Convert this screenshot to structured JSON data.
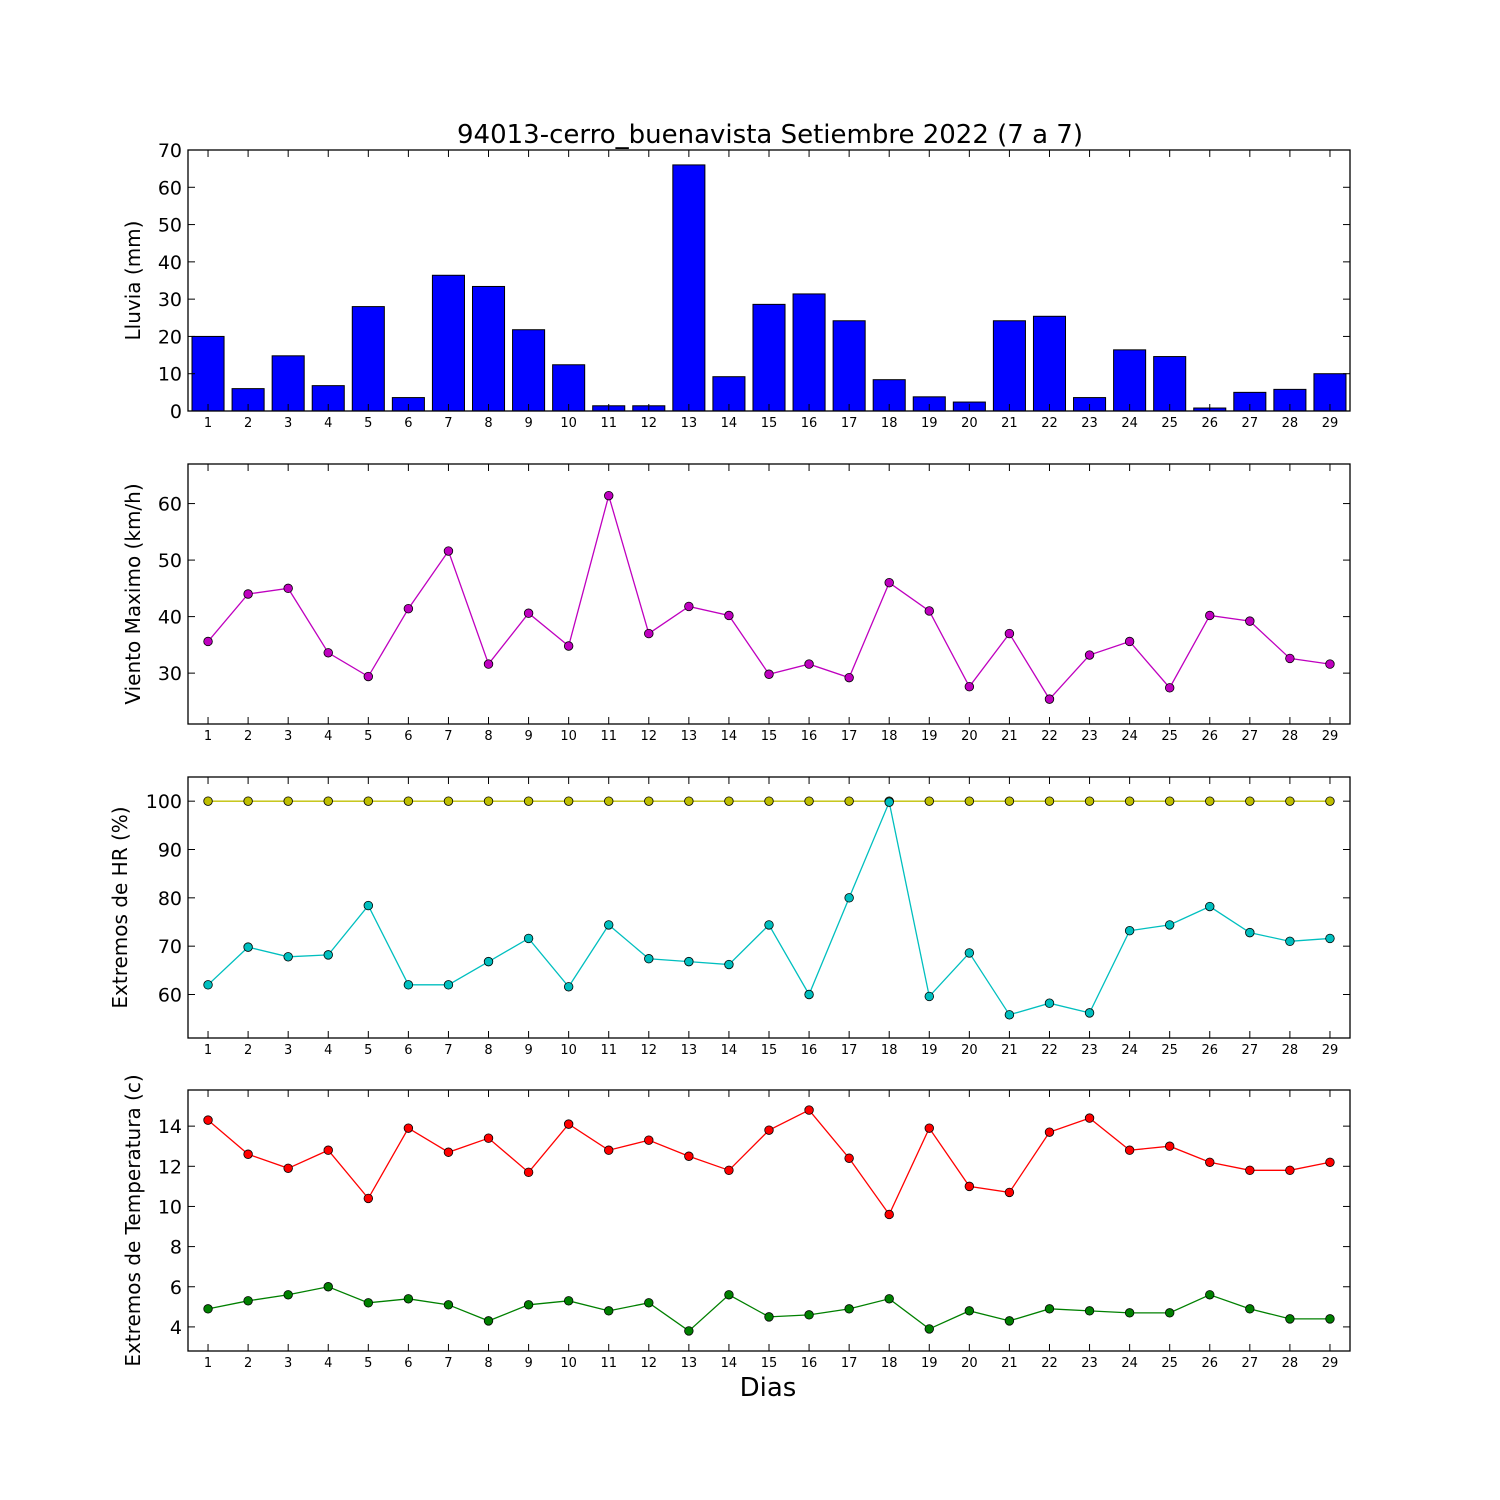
{
  "title": "94013-cerro_buenavista Setiembre 2022  (7 a 7)",
  "xlabel": "Dias",
  "chart_data": [
    {
      "type": "bar",
      "ylabel": "Lluvia (mm)",
      "ylim": [
        0,
        70
      ],
      "yticks": [
        0,
        10,
        20,
        30,
        40,
        50,
        60,
        70
      ],
      "categories": [
        1,
        2,
        3,
        4,
        5,
        6,
        7,
        8,
        9,
        10,
        11,
        12,
        13,
        14,
        15,
        16,
        17,
        18,
        19,
        20,
        21,
        22,
        23,
        24,
        25,
        26,
        27,
        28,
        29
      ],
      "series": [
        {
          "color": "#0000ff",
          "values": [
            20.0,
            6.0,
            14.8,
            6.8,
            28.0,
            3.6,
            36.4,
            33.4,
            21.8,
            12.4,
            1.4,
            1.4,
            66.0,
            9.2,
            28.6,
            31.4,
            24.2,
            8.4,
            3.8,
            2.4,
            24.2,
            25.4,
            3.6,
            16.4,
            14.6,
            0.8,
            5.0,
            5.8,
            10.0
          ]
        }
      ]
    },
    {
      "type": "line",
      "ylabel": "Viento Maximo (km/h)",
      "ylim": [
        21,
        67
      ],
      "yticks": [
        30,
        40,
        50,
        60
      ],
      "x": [
        1,
        2,
        3,
        4,
        5,
        6,
        7,
        8,
        9,
        10,
        11,
        12,
        13,
        14,
        15,
        16,
        17,
        18,
        19,
        20,
        21,
        22,
        23,
        24,
        25,
        26,
        27,
        28,
        29
      ],
      "series": [
        {
          "color": "#bf00bf",
          "values": [
            35.6,
            44.0,
            45.0,
            33.6,
            29.4,
            41.4,
            51.6,
            31.6,
            40.6,
            34.8,
            61.4,
            37.0,
            41.8,
            40.2,
            29.8,
            31.6,
            29.2,
            46.0,
            41.0,
            27.6,
            37.0,
            25.4,
            33.2,
            35.6,
            27.4,
            40.2,
            39.2,
            32.6,
            31.6
          ]
        }
      ]
    },
    {
      "type": "line",
      "ylabel": "Extremos de HR (%)",
      "ylim": [
        51,
        105
      ],
      "yticks": [
        60,
        70,
        80,
        90,
        100
      ],
      "x": [
        1,
        2,
        3,
        4,
        5,
        6,
        7,
        8,
        9,
        10,
        11,
        12,
        13,
        14,
        15,
        16,
        17,
        18,
        19,
        20,
        21,
        22,
        23,
        24,
        25,
        26,
        27,
        28,
        29
      ],
      "series": [
        {
          "color": "#bfbf00",
          "values": [
            100,
            100,
            100,
            100,
            100,
            100,
            100,
            100,
            100,
            100,
            100,
            100,
            100,
            100,
            100,
            100,
            100,
            100,
            100,
            100,
            100,
            100,
            100,
            100,
            100,
            100,
            100,
            100,
            100
          ]
        },
        {
          "color": "#00bfbf",
          "values": [
            62,
            69.8,
            67.8,
            68.2,
            78.4,
            62,
            62,
            66.8,
            71.6,
            61.6,
            74.4,
            67.4,
            66.8,
            66.2,
            74.4,
            60,
            80,
            99.8,
            59.6,
            68.6,
            55.8,
            58.2,
            56.2,
            73.2,
            74.4,
            78.2,
            72.8,
            71.0,
            71.6
          ]
        }
      ]
    },
    {
      "type": "line",
      "ylabel": "Extremos de Temperatura (c)",
      "ylim": [
        2.8,
        15.8
      ],
      "yticks": [
        4,
        6,
        8,
        10,
        12,
        14
      ],
      "x": [
        1,
        2,
        3,
        4,
        5,
        6,
        7,
        8,
        9,
        10,
        11,
        12,
        13,
        14,
        15,
        16,
        17,
        18,
        19,
        20,
        21,
        22,
        23,
        24,
        25,
        26,
        27,
        28,
        29
      ],
      "series": [
        {
          "color": "#ff0000",
          "values": [
            14.3,
            12.6,
            11.9,
            12.8,
            10.4,
            13.9,
            12.7,
            13.4,
            11.7,
            14.1,
            12.8,
            13.3,
            12.5,
            11.8,
            13.8,
            14.8,
            12.4,
            9.6,
            13.9,
            11.0,
            10.7,
            13.7,
            14.4,
            12.8,
            13.0,
            12.2,
            11.8,
            11.8,
            12.2
          ]
        },
        {
          "color": "#008000",
          "values": [
            4.9,
            5.3,
            5.6,
            6.0,
            5.2,
            5.4,
            5.1,
            4.3,
            5.1,
            5.3,
            4.8,
            5.2,
            3.8,
            5.6,
            4.5,
            4.6,
            4.9,
            5.4,
            3.9,
            4.8,
            4.3,
            4.9,
            4.8,
            4.7,
            4.7,
            5.6,
            4.9,
            4.4,
            4.4
          ]
        }
      ]
    }
  ]
}
